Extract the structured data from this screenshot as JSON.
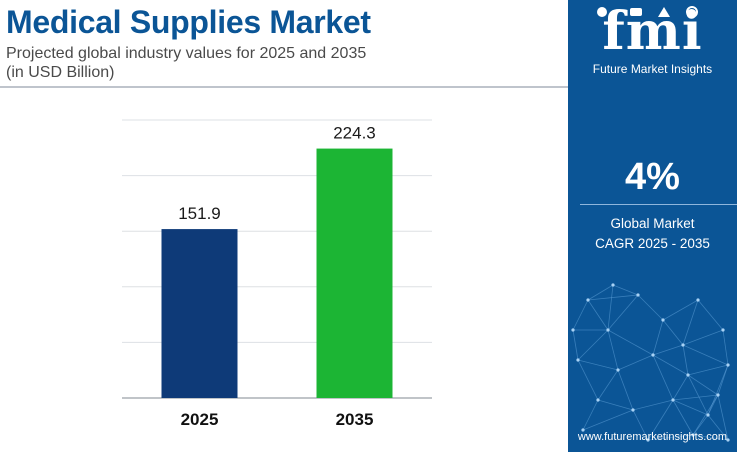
{
  "header": {
    "title": "Medical Supplies Market",
    "subtitle_line1": "Projected global industry values for 2025 and 2035",
    "subtitle_line2": "(in USD Billion)"
  },
  "brand": {
    "logo_text": "fmi",
    "logo_caption": "Future Market Insights",
    "website": "www.futuremarketinsights.com",
    "panel_color": "#0b5596"
  },
  "cagr": {
    "value": "4%",
    "label_line1": "Global Market",
    "label_line2": "CAGR 2025 - 2035"
  },
  "chart_data": {
    "type": "bar",
    "categories": [
      "2025",
      "2035"
    ],
    "values": [
      151.9,
      224.3
    ],
    "value_labels": [
      "151.9",
      "224.3"
    ],
    "bar_colors": [
      "#0e3a78",
      "#1cb534"
    ],
    "ylim": [
      0,
      250
    ],
    "grid": true,
    "legend": "none"
  }
}
